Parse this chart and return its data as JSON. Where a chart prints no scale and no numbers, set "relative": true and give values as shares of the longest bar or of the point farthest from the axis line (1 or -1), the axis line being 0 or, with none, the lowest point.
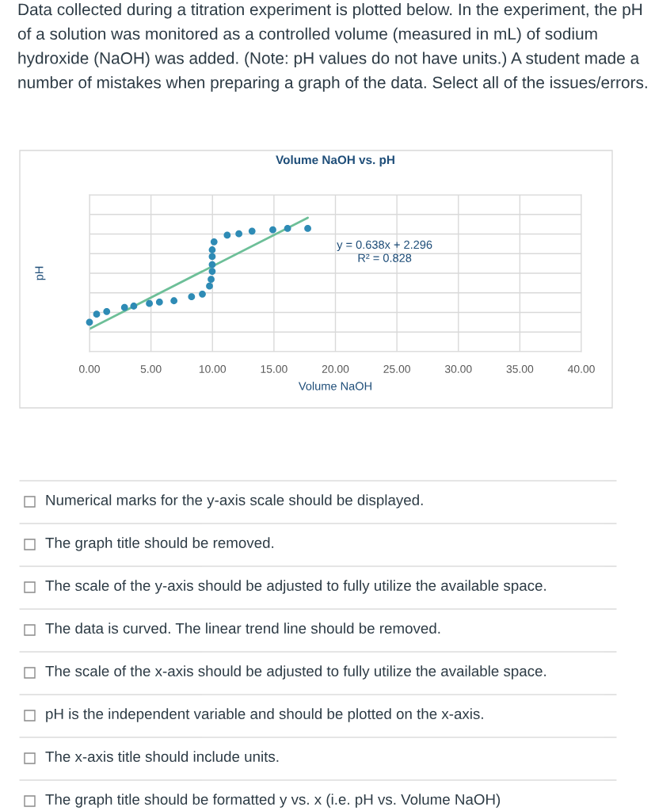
{
  "chart_data": {
    "type": "scatter",
    "title": "Volume NaOH vs. pH",
    "xlabel": "Volume NaOH",
    "ylabel": "pH",
    "relative": true,
    "xlim": [
      0,
      40
    ],
    "xticks": [
      {
        "value": 0,
        "label": "0.00"
      },
      {
        "value": 5,
        "label": "5.00"
      },
      {
        "value": 10,
        "label": "10.00"
      },
      {
        "value": 15,
        "label": "15.00"
      },
      {
        "value": 20,
        "label": "20.00"
      },
      {
        "value": 25,
        "label": "25.00"
      },
      {
        "value": 30,
        "label": "30.00"
      },
      {
        "value": 35,
        "label": "35.00"
      },
      {
        "value": 40,
        "label": "40.00"
      }
    ],
    "grid": true,
    "marker": "circle",
    "tick_labels": "x",
    "series": [
      {
        "color": "#2e8bb5",
        "x": [
          0.0,
          0.58,
          1.4,
          2.85,
          3.6,
          4.87,
          5.69,
          6.87,
          8.3,
          9.18,
          9.76,
          9.89,
          9.98,
          9.98,
          9.98,
          9.98,
          10.13,
          11.2,
          12.15,
          13.22,
          14.91,
          16.11,
          17.75
        ],
        "values": [
          0.22,
          0.28,
          0.3,
          0.33,
          0.34,
          0.36,
          0.37,
          0.38,
          0.41,
          0.43,
          0.49,
          0.54,
          0.6,
          0.65,
          0.71,
          0.76,
          0.82,
          0.87,
          0.88,
          0.9,
          0.91,
          0.92,
          0.92
        ]
      },
      {
        "type": "line",
        "marker": "none",
        "color": "#6dbf98",
        "x": [
          0,
          17.75
        ],
        "values": [
          0.17,
          1
        ]
      }
    ],
    "annotations": [
      "Data collected during a titration experiment is plotted below. In the experiment, the pH of a solution was monitored as a controlled volume (measured in mL) of sodium hydroxide (NaOH) was added. (Note: pH values do not have units.) A student made a number of mistakes when preparing a graph of the data. Select all of the issues/errors.",
      "y = 0.638x + 2.296\nR² = 0.828",
      "Numerical marks for the y-axis scale should be displayed.",
      "The graph title should be removed.",
      "The scale of the y-axis should be adjusted to fully utilize the available space.",
      "The data is curved. The linear trend line should be removed.",
      "The scale of the x-axis should be adjusted to fully utilize the available space.",
      "pH is the independent variable and should be plotted on the x-axis.",
      "The x-axis title should include units.",
      "The graph title should be formatted y vs. x (i.e. pH vs. Volume NaOH)"
    ]
  }
}
